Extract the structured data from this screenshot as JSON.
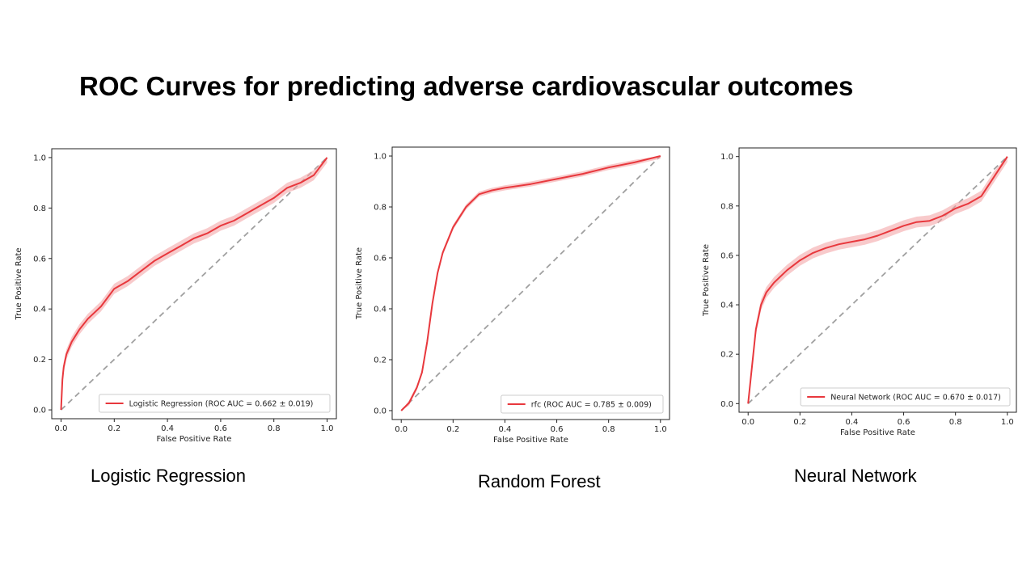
{
  "slide": {
    "title": "ROC Curves for predicting adverse cardiovascular outcomes"
  },
  "theme": {
    "curve_color": "#e8383d",
    "band_color": "#f4a6a8",
    "diagonal_color": "#a0a0a0"
  },
  "captions": [
    "Logistic Regression",
    "Random Forest",
    "Neural Network"
  ],
  "chart_data": [
    {
      "type": "line",
      "xlabel": "False Positive Rate",
      "ylabel": "True Positive Rate",
      "xlim": [
        0,
        1
      ],
      "ylim": [
        0,
        1
      ],
      "xticks": [
        "0.0",
        "0.2",
        "0.4",
        "0.6",
        "0.8",
        "1.0"
      ],
      "yticks": [
        "0.0",
        "0.2",
        "0.4",
        "0.6",
        "0.8",
        "1.0"
      ],
      "legend_position": "lower-right",
      "series": [
        {
          "name": "Logistic Regression (ROC AUC = 0.662 ± 0.019)",
          "x": [
            0,
            0.005,
            0.01,
            0.02,
            0.04,
            0.07,
            0.1,
            0.15,
            0.2,
            0.25,
            0.3,
            0.35,
            0.4,
            0.45,
            0.5,
            0.55,
            0.6,
            0.65,
            0.7,
            0.75,
            0.8,
            0.85,
            0.9,
            0.95,
            1.0
          ],
          "y": [
            0,
            0.12,
            0.17,
            0.22,
            0.27,
            0.32,
            0.36,
            0.41,
            0.48,
            0.51,
            0.55,
            0.59,
            0.62,
            0.65,
            0.68,
            0.7,
            0.73,
            0.75,
            0.78,
            0.81,
            0.84,
            0.88,
            0.9,
            0.93,
            1.0
          ],
          "band": 0.02
        }
      ]
    },
    {
      "type": "line",
      "xlabel": "False Positive Rate",
      "ylabel": "True Positive Rate",
      "xlim": [
        0,
        1
      ],
      "ylim": [
        0,
        1
      ],
      "xticks": [
        "0.0",
        "0.2",
        "0.4",
        "0.6",
        "0.8",
        "1.0"
      ],
      "yticks": [
        "0.0",
        "0.2",
        "0.4",
        "0.6",
        "0.8",
        "1.0"
      ],
      "legend_position": "lower-right",
      "series": [
        {
          "name": "rfc (ROC AUC = 0.785 ± 0.009)",
          "x": [
            0,
            0.03,
            0.06,
            0.08,
            0.1,
            0.12,
            0.14,
            0.16,
            0.2,
            0.25,
            0.3,
            0.35,
            0.4,
            0.5,
            0.6,
            0.7,
            0.8,
            0.9,
            1.0
          ],
          "y": [
            0,
            0.03,
            0.09,
            0.15,
            0.27,
            0.42,
            0.54,
            0.62,
            0.72,
            0.8,
            0.85,
            0.865,
            0.875,
            0.89,
            0.91,
            0.93,
            0.955,
            0.975,
            1.0
          ],
          "band": 0.01
        }
      ]
    },
    {
      "type": "line",
      "xlabel": "False Positive Rate",
      "ylabel": "True Positive Rate",
      "xlim": [
        0,
        1
      ],
      "ylim": [
        0,
        1
      ],
      "xticks": [
        "0.0",
        "0.2",
        "0.4",
        "0.6",
        "0.8",
        "1.0"
      ],
      "yticks": [
        "0.0",
        "0.2",
        "0.4",
        "0.6",
        "0.8",
        "1.0"
      ],
      "legend_position": "lower-right",
      "series": [
        {
          "name": "Neural Network (ROC AUC = 0.670 ± 0.017)",
          "x": [
            0,
            0.01,
            0.02,
            0.03,
            0.05,
            0.07,
            0.1,
            0.15,
            0.2,
            0.25,
            0.3,
            0.35,
            0.4,
            0.45,
            0.5,
            0.55,
            0.6,
            0.65,
            0.7,
            0.75,
            0.8,
            0.85,
            0.9,
            0.95,
            1.0
          ],
          "y": [
            0,
            0.1,
            0.2,
            0.3,
            0.4,
            0.45,
            0.49,
            0.54,
            0.58,
            0.61,
            0.63,
            0.645,
            0.655,
            0.665,
            0.68,
            0.7,
            0.72,
            0.735,
            0.74,
            0.76,
            0.79,
            0.81,
            0.84,
            0.92,
            1.0
          ],
          "band": 0.022
        }
      ]
    }
  ]
}
